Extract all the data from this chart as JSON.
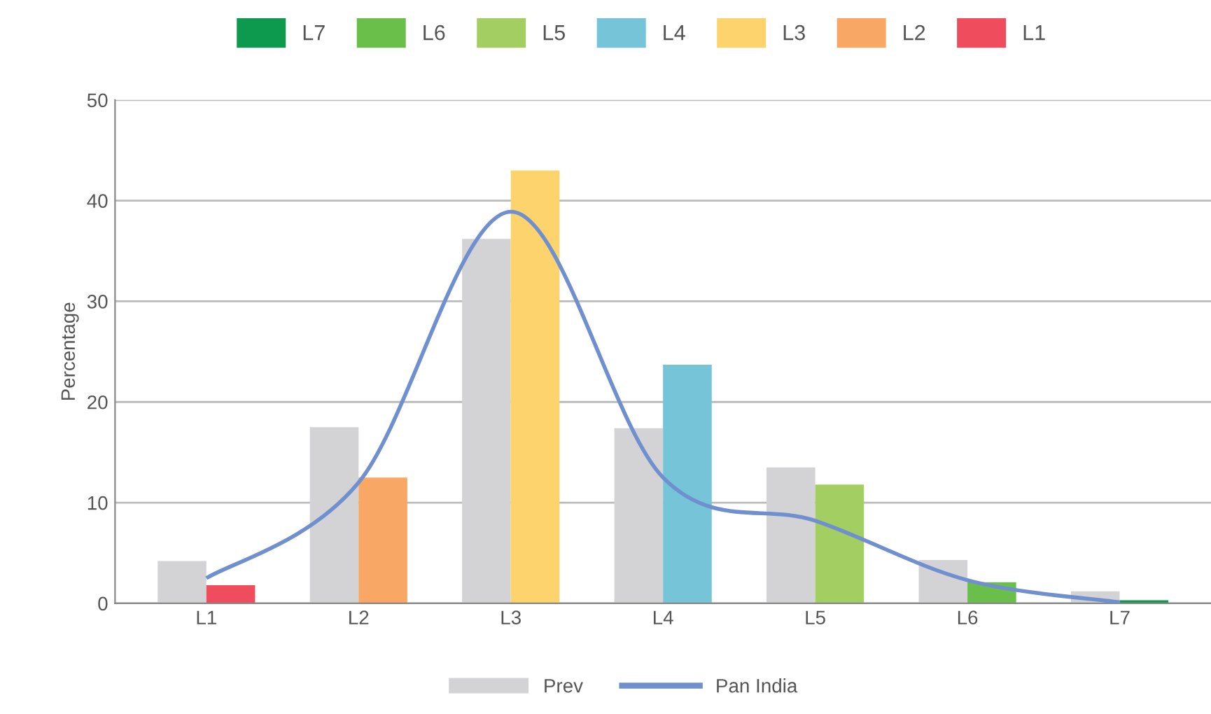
{
  "chart_data": {
    "type": "bar",
    "ylabel": "Percentage",
    "categories": [
      "L1",
      "L2",
      "L3",
      "L4",
      "L5",
      "L6",
      "L7"
    ],
    "series": [
      {
        "name": "Prev",
        "color": "#d3d3d5",
        "values": [
          4.2,
          17.5,
          36.2,
          17.4,
          13.5,
          4.3,
          1.2
        ]
      },
      {
        "name": "L1",
        "color": "#ef4c5e",
        "values": [
          1.8,
          null,
          null,
          null,
          null,
          null,
          null
        ]
      },
      {
        "name": "L2",
        "color": "#f8a765",
        "values": [
          null,
          12.5,
          null,
          null,
          null,
          null,
          null
        ]
      },
      {
        "name": "L3",
        "color": "#fdd36d",
        "values": [
          null,
          null,
          43.0,
          null,
          null,
          null,
          null
        ]
      },
      {
        "name": "L4",
        "color": "#76c4d8",
        "values": [
          null,
          null,
          null,
          23.7,
          null,
          null,
          null
        ]
      },
      {
        "name": "L5",
        "color": "#a3cf62",
        "values": [
          null,
          null,
          null,
          null,
          11.8,
          null,
          null
        ]
      },
      {
        "name": "L6",
        "color": "#6abf4b",
        "values": [
          null,
          null,
          null,
          null,
          null,
          2.1,
          null
        ]
      },
      {
        "name": "L7",
        "color": "#0d9a4f",
        "values": [
          null,
          null,
          null,
          null,
          null,
          null,
          0.3
        ]
      },
      {
        "name": "Pan India",
        "type": "line",
        "color": "#6f8fcf",
        "values": [
          2.5,
          12,
          38.9,
          12.5,
          8.2,
          2.3,
          0.1
        ]
      }
    ],
    "ylim": [
      0,
      50
    ],
    "yticks": [
      0,
      10,
      20,
      30,
      40,
      50
    ],
    "grid": "y",
    "legend": "bottom",
    "marker": "none",
    "line_style": "solid"
  }
}
